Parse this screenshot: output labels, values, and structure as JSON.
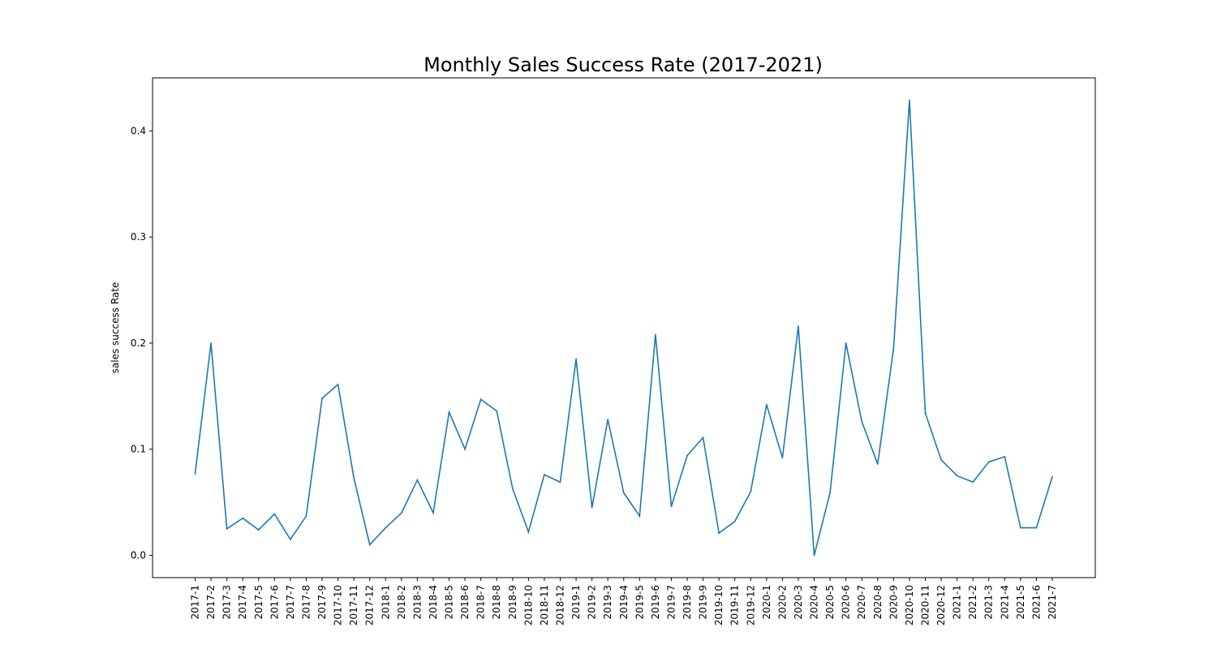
{
  "chart_data": {
    "type": "line",
    "title": "Monthly Sales Success Rate (2017-2021)",
    "xlabel": "",
    "ylabel": "sales success Rate",
    "x": [
      "2017-1",
      "2017-2",
      "2017-3",
      "2017-4",
      "2017-5",
      "2017-6",
      "2017-7",
      "2017-8",
      "2017-9",
      "2017-10",
      "2017-11",
      "2017-12",
      "2018-1",
      "2018-2",
      "2018-3",
      "2018-4",
      "2018-5",
      "2018-6",
      "2018-7",
      "2018-8",
      "2018-9",
      "2018-10",
      "2018-11",
      "2018-12",
      "2019-1",
      "2019-2",
      "2019-3",
      "2019-4",
      "2019-5",
      "2019-6",
      "2019-7",
      "2019-8",
      "2019-9",
      "2019-10",
      "2019-11",
      "2019-12",
      "2020-1",
      "2020-2",
      "2020-3",
      "2020-4",
      "2020-5",
      "2020-6",
      "2020-7",
      "2020-8",
      "2020-9",
      "2020-10",
      "2020-11",
      "2020-12",
      "2021-1",
      "2021-2",
      "2021-3",
      "2021-4",
      "2021-5",
      "2021-6",
      "2021-7"
    ],
    "series": [
      {
        "values": [
          0.077,
          0.2,
          0.025,
          0.035,
          0.024,
          0.039,
          0.015,
          0.037,
          0.148,
          0.161,
          0.073,
          0.01,
          0.026,
          0.04,
          0.071,
          0.04,
          0.135,
          0.1,
          0.147,
          0.136,
          0.063,
          0.022,
          0.076,
          0.069,
          0.185,
          0.045,
          0.128,
          0.059,
          0.037,
          0.208,
          0.046,
          0.094,
          0.111,
          0.021,
          0.032,
          0.06,
          0.142,
          0.092,
          0.216,
          0.0,
          0.059,
          0.2,
          0.126,
          0.086,
          0.195,
          0.429,
          0.134,
          0.09,
          0.075,
          0.069,
          0.088,
          0.093,
          0.026,
          0.026,
          0.074
        ],
        "color": "#1f77b4"
      }
    ],
    "ylim": [
      -0.021,
      0.45
    ],
    "yticks": [
      0.0,
      0.1,
      0.2,
      0.3,
      0.4
    ],
    "ytick_labels": [
      "0.0",
      "0.1",
      "0.2",
      "0.3",
      "0.4"
    ],
    "grid": false,
    "legend": "none"
  }
}
